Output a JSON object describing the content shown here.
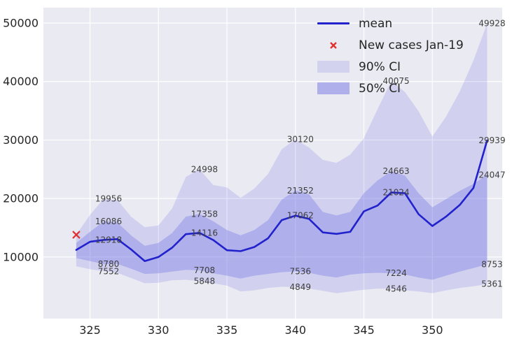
{
  "chart_data": {
    "type": "line",
    "title": "",
    "xlabel": "",
    "ylabel": "",
    "grid": true,
    "legend_position": "upper center-right",
    "x_ticks": [
      325,
      330,
      335,
      340,
      345,
      350
    ],
    "y_ticks": [
      10000,
      20000,
      30000,
      40000,
      50000
    ],
    "xlim": [
      321.6,
      355.1
    ],
    "ylim": [
      -530,
      52630
    ],
    "x": [
      324,
      325,
      326,
      327,
      328,
      329,
      330,
      331,
      332,
      333,
      334,
      335,
      336,
      337,
      338,
      339,
      340,
      341,
      342,
      343,
      344,
      345,
      346,
      347,
      348,
      349,
      350,
      351,
      352,
      353,
      354
    ],
    "series": [
      {
        "name": "mean",
        "values": [
          11200,
          12600,
          12918,
          13050,
          11300,
          9300,
          10000,
          11600,
          13900,
          14116,
          12900,
          11150,
          11000,
          11700,
          13200,
          16300,
          17062,
          16500,
          14200,
          13950,
          14300,
          17800,
          18800,
          21024,
          20900,
          17300,
          15300,
          16900,
          18900,
          21800,
          29939
        ]
      },
      {
        "name": "50% CI upper",
        "values": [
          12400,
          14300,
          16086,
          15900,
          13700,
          11900,
          12400,
          14100,
          16900,
          17358,
          16100,
          14600,
          13700,
          14600,
          16300,
          19800,
          21352,
          20700,
          17700,
          17100,
          17700,
          20900,
          23100,
          24663,
          23900,
          20900,
          18500,
          19900,
          21300,
          22500,
          24047
        ]
      },
      {
        "name": "50% CI lower",
        "values": [
          9800,
          9300,
          8780,
          8800,
          8000,
          7100,
          7200,
          7500,
          7800,
          7708,
          7200,
          6800,
          6300,
          6800,
          7100,
          7400,
          7536,
          7300,
          6800,
          6500,
          7000,
          7200,
          7300,
          7224,
          7000,
          6500,
          6100,
          6800,
          7500,
          8100,
          8753
        ]
      },
      {
        "name": "90% CI upper",
        "values": [
          13800,
          17200,
          19956,
          19750,
          16900,
          15100,
          15400,
          18300,
          23700,
          24998,
          22300,
          21900,
          20100,
          21700,
          24200,
          28400,
          30120,
          28700,
          26600,
          26100,
          27500,
          30300,
          35300,
          40075,
          38200,
          34900,
          30600,
          34000,
          38300,
          43600,
          49928
        ]
      },
      {
        "name": "90% CI lower",
        "values": [
          8400,
          7900,
          7552,
          7300,
          6400,
          5500,
          5600,
          6000,
          6100,
          5848,
          5500,
          5100,
          4100,
          4300,
          4700,
          4900,
          4849,
          4600,
          4200,
          3800,
          4100,
          4400,
          4600,
          4546,
          4300,
          4100,
          3800,
          4300,
          4700,
          5000,
          5361
        ]
      }
    ],
    "observed_point": {
      "label": "New cases Jan-19",
      "x": 324,
      "value": 13800
    },
    "annotations": [
      {
        "x": 326,
        "value": 19956,
        "series": "90% CI upper"
      },
      {
        "x": 326,
        "value": 16086,
        "series": "50% CI upper"
      },
      {
        "x": 326,
        "value": 12918,
        "series": "mean"
      },
      {
        "x": 326,
        "value": 8780,
        "series": "50% CI lower"
      },
      {
        "x": 326,
        "value": 7552,
        "series": "90% CI lower"
      },
      {
        "x": 333,
        "value": 24998,
        "series": "90% CI upper"
      },
      {
        "x": 333,
        "value": 17358,
        "series": "50% CI upper"
      },
      {
        "x": 333,
        "value": 14116,
        "series": "mean"
      },
      {
        "x": 333,
        "value": 7708,
        "series": "50% CI lower"
      },
      {
        "x": 333,
        "value": 5848,
        "series": "90% CI lower"
      },
      {
        "x": 340,
        "value": 30120,
        "series": "90% CI upper"
      },
      {
        "x": 340,
        "value": 21352,
        "series": "50% CI upper"
      },
      {
        "x": 340,
        "value": 17062,
        "series": "mean"
      },
      {
        "x": 340,
        "value": 7536,
        "series": "50% CI lower"
      },
      {
        "x": 340,
        "value": 4849,
        "series": "90% CI lower"
      },
      {
        "x": 347,
        "value": 40075,
        "series": "90% CI upper"
      },
      {
        "x": 347,
        "value": 24663,
        "series": "50% CI upper"
      },
      {
        "x": 347,
        "value": 21024,
        "series": "mean"
      },
      {
        "x": 347,
        "value": 7224,
        "series": "50% CI lower"
      },
      {
        "x": 347,
        "value": 4546,
        "series": "90% CI lower"
      },
      {
        "x": 354,
        "value": 49928,
        "series": "90% CI upper"
      },
      {
        "x": 354,
        "value": 29939,
        "series": "mean"
      },
      {
        "x": 354,
        "value": 24047,
        "series": "50% CI upper"
      },
      {
        "x": 354,
        "value": 8753,
        "series": "50% CI lower"
      },
      {
        "x": 354,
        "value": 5361,
        "series": "90% CI lower"
      }
    ],
    "legend": [
      {
        "label": "mean"
      },
      {
        "label": "New cases Jan-19"
      },
      {
        "label": "90% CI"
      },
      {
        "label": "50% CI"
      }
    ],
    "colors": {
      "mean_line": "#2222cc",
      "marker": "#e03131",
      "band_fill": "#6666e2",
      "band90_opacity": 0.18,
      "band50_opacity": 0.32,
      "legend_band90": "#d2d2ef",
      "legend_band50": "#afafeb",
      "plot_bg": "#eaeaf2",
      "grid": "#ffffff",
      "tick_text": "#262626",
      "annotation_text": "#3d3d3d"
    }
  }
}
